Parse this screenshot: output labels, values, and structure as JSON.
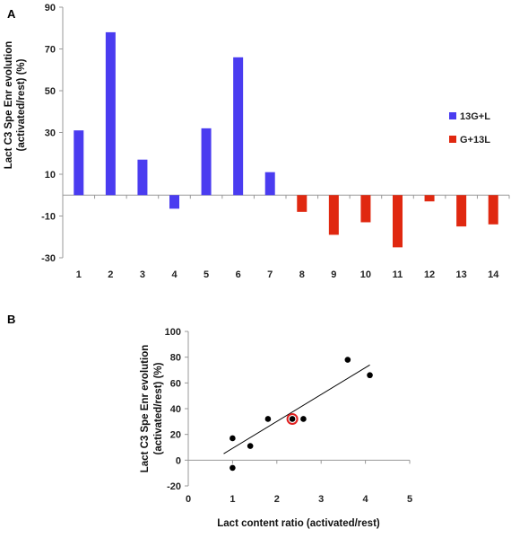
{
  "chart_data": [
    {
      "panel_label": "A",
      "type": "bar",
      "categories": [
        "1",
        "2",
        "3",
        "4",
        "5",
        "6",
        "7",
        "8",
        "9",
        "10",
        "11",
        "12",
        "13",
        "14"
      ],
      "series": [
        {
          "name": "13G+L",
          "color": "#4a3cf0",
          "values": [
            31,
            78,
            17,
            -6.5,
            32,
            66,
            11,
            null,
            null,
            null,
            null,
            null,
            null,
            null
          ]
        },
        {
          "name": "G+13L",
          "color": "#e02810",
          "values": [
            null,
            null,
            null,
            null,
            null,
            null,
            null,
            -8,
            -19,
            -13,
            -25,
            -3,
            -15,
            -14
          ]
        }
      ],
      "ylabel_line1": "Lact C3 Spe Enr evolution",
      "ylabel_line2": "(activated/rest) (%)",
      "ylim": [
        -30,
        90
      ],
      "yticks": [
        -30,
        -10,
        10,
        30,
        50,
        70,
        90
      ],
      "legend_position": "right",
      "grid": false
    },
    {
      "panel_label": "B",
      "type": "scatter",
      "points": [
        {
          "x": 1.0,
          "y": 17
        },
        {
          "x": 1.0,
          "y": -6
        },
        {
          "x": 1.4,
          "y": 11
        },
        {
          "x": 1.8,
          "y": 32
        },
        {
          "x": 2.35,
          "y": 32,
          "highlight": true
        },
        {
          "x": 2.6,
          "y": 32
        },
        {
          "x": 3.6,
          "y": 78
        },
        {
          "x": 4.1,
          "y": 66
        }
      ],
      "trendline": {
        "x0": 0.8,
        "y0": 5,
        "x1": 4.1,
        "y1": 74
      },
      "xlabel": "Lact content ratio (activated/rest)",
      "ylabel_line1": "Lact C3 Spe Enr evolution",
      "ylabel_line2": "(activated/rest) (%)",
      "xlim": [
        0,
        5
      ],
      "ylim": [
        -20,
        100
      ],
      "xticks": [
        0,
        1,
        2,
        3,
        4,
        5
      ],
      "yticks": [
        -20,
        0,
        20,
        40,
        60,
        80,
        100
      ],
      "point_color": "#000000",
      "highlight_color": "#e02020",
      "grid": false
    }
  ]
}
